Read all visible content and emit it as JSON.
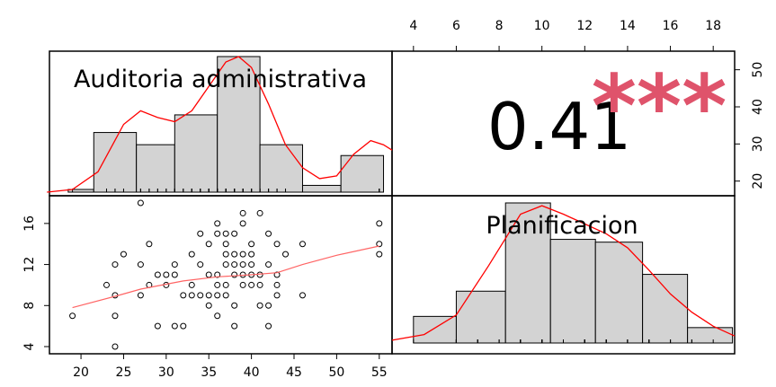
{
  "chart_data": {
    "type": "scatterplot-matrix",
    "variables": [
      "Auditoria administrativa",
      "Planificacion"
    ],
    "correlation": {
      "value": "0.41",
      "stars": "***"
    },
    "x_ticks_bottom": [
      "20",
      "25",
      "30",
      "35",
      "40",
      "45",
      "50",
      "55"
    ],
    "x_ticks_top": [
      "4",
      "6",
      "8",
      "10",
      "12",
      "14",
      "16",
      "18"
    ],
    "y_ticks_left": [
      "4",
      "8",
      "12",
      "16"
    ],
    "y_ticks_right": [
      "20",
      "30",
      "40",
      "50"
    ],
    "colors": {
      "density": "#ff0000",
      "smooth": "#ff6464",
      "bar_fill": "#d3d3d3",
      "stars": "#df536b"
    },
    "hist_auditoria": {
      "bins": [
        [
          18.5,
          21.5
        ],
        [
          21.5,
          26.5
        ],
        [
          26.5,
          31.0
        ],
        [
          31.0,
          36.0
        ],
        [
          36.0,
          41.0
        ],
        [
          41.0,
          46.0
        ],
        [
          46.0,
          50.5
        ],
        [
          50.5,
          55.5
        ]
      ],
      "density": [
        0.02,
        0.44,
        0.35,
        0.57,
        1.0,
        0.35,
        0.05,
        0.27
      ]
    },
    "hist_planificacion": {
      "bins": [
        [
          4.0,
          6.0
        ],
        [
          6.0,
          8.3
        ],
        [
          8.3,
          10.4
        ],
        [
          10.4,
          12.5
        ],
        [
          12.5,
          14.7
        ],
        [
          14.7,
          16.8
        ],
        [
          16.8,
          18.9
        ]
      ],
      "density": [
        0.19,
        0.37,
        1.0,
        0.74,
        0.72,
        0.49,
        0.11
      ]
    },
    "density_curve_auditoria": [
      [
        16,
        0.0
      ],
      [
        19,
        0.02
      ],
      [
        22,
        0.15
      ],
      [
        25,
        0.5
      ],
      [
        27,
        0.6
      ],
      [
        29,
        0.55
      ],
      [
        31,
        0.52
      ],
      [
        33,
        0.6
      ],
      [
        35,
        0.78
      ],
      [
        37,
        0.96
      ],
      [
        38.5,
        1.0
      ],
      [
        40,
        0.92
      ],
      [
        42,
        0.65
      ],
      [
        44,
        0.35
      ],
      [
        46,
        0.18
      ],
      [
        48,
        0.1
      ],
      [
        50,
        0.12
      ],
      [
        52,
        0.28
      ],
      [
        54,
        0.38
      ],
      [
        55.5,
        0.35
      ],
      [
        56.5,
        0.31
      ]
    ],
    "density_curve_planificacion": [
      [
        3,
        0.02
      ],
      [
        4.5,
        0.06
      ],
      [
        6,
        0.2
      ],
      [
        7.5,
        0.55
      ],
      [
        9,
        0.92
      ],
      [
        10,
        0.98
      ],
      [
        11,
        0.92
      ],
      [
        12,
        0.85
      ],
      [
        13,
        0.78
      ],
      [
        14,
        0.68
      ],
      [
        15,
        0.52
      ],
      [
        16,
        0.35
      ],
      [
        17,
        0.22
      ],
      [
        18,
        0.12
      ],
      [
        19,
        0.05
      ]
    ],
    "scatter": {
      "xlabel": "Auditoria administrativa",
      "ylabel": "Planificacion",
      "points": [
        [
          19,
          7
        ],
        [
          23,
          10
        ],
        [
          24,
          4
        ],
        [
          24,
          7
        ],
        [
          24,
          9
        ],
        [
          24,
          12
        ],
        [
          25,
          13
        ],
        [
          27,
          18
        ],
        [
          27,
          9
        ],
        [
          27,
          12
        ],
        [
          28,
          10
        ],
        [
          28,
          14
        ],
        [
          29,
          11
        ],
        [
          29,
          6
        ],
        [
          30,
          11
        ],
        [
          30,
          10
        ],
        [
          31,
          12
        ],
        [
          31,
          11
        ],
        [
          31,
          6
        ],
        [
          32,
          9
        ],
        [
          32,
          6
        ],
        [
          33,
          13
        ],
        [
          33,
          10
        ],
        [
          33,
          9
        ],
        [
          34,
          12
        ],
        [
          34,
          9
        ],
        [
          34,
          15
        ],
        [
          35,
          9
        ],
        [
          35,
          8
        ],
        [
          35,
          14
        ],
        [
          35,
          11
        ],
        [
          36,
          16
        ],
        [
          36,
          7
        ],
        [
          36,
          9
        ],
        [
          36,
          10
        ],
        [
          36,
          11
        ],
        [
          36,
          15
        ],
        [
          37,
          9
        ],
        [
          37,
          10
        ],
        [
          37,
          12
        ],
        [
          37,
          13
        ],
        [
          37,
          14
        ],
        [
          37,
          15
        ],
        [
          38,
          6
        ],
        [
          38,
          8
        ],
        [
          38,
          11
        ],
        [
          38,
          12
        ],
        [
          38,
          13
        ],
        [
          38,
          15
        ],
        [
          39,
          10
        ],
        [
          39,
          11
        ],
        [
          39,
          12
        ],
        [
          39,
          13
        ],
        [
          39,
          17
        ],
        [
          39,
          16
        ],
        [
          40,
          10
        ],
        [
          40,
          11
        ],
        [
          40,
          12
        ],
        [
          40,
          13
        ],
        [
          40,
          14
        ],
        [
          41,
          8
        ],
        [
          41,
          11
        ],
        [
          41,
          17
        ],
        [
          41,
          10
        ],
        [
          42,
          6
        ],
        [
          42,
          8
        ],
        [
          42,
          12
        ],
        [
          42,
          15
        ],
        [
          43,
          9
        ],
        [
          43,
          10
        ],
        [
          43,
          11
        ],
        [
          43,
          14
        ],
        [
          44,
          13
        ],
        [
          46,
          9
        ],
        [
          46,
          14
        ],
        [
          55,
          13
        ],
        [
          55,
          14
        ],
        [
          55,
          16
        ]
      ],
      "smooth": [
        [
          19,
          7.8
        ],
        [
          24,
          8.9
        ],
        [
          27,
          9.6
        ],
        [
          32,
          10.4
        ],
        [
          36,
          10.8
        ],
        [
          40,
          11.0
        ],
        [
          43,
          11.2
        ],
        [
          46,
          12.0
        ],
        [
          50,
          12.9
        ],
        [
          55,
          13.8
        ]
      ]
    }
  }
}
